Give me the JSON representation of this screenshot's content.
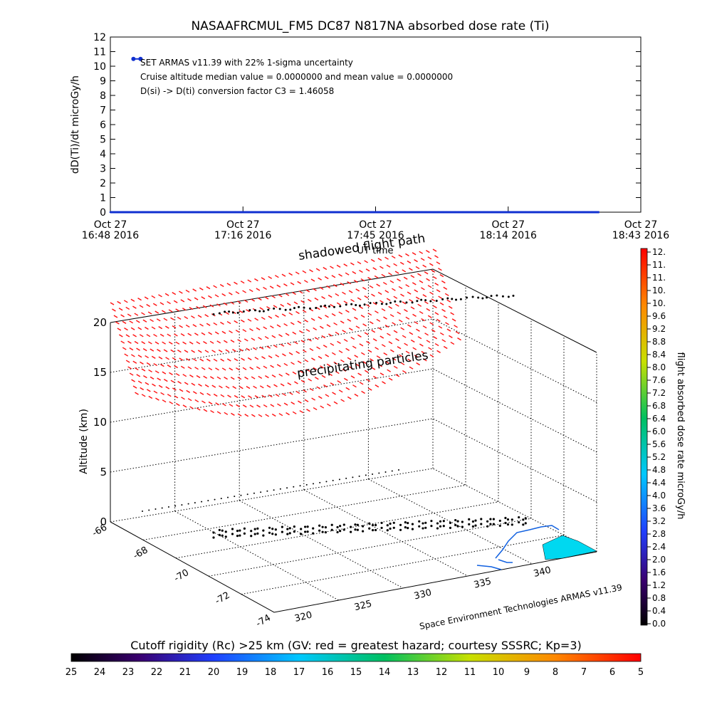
{
  "chart_data": [
    {
      "type": "line",
      "title": "NASAAFRCMUL_FM5 DC87 N817NA absorbed dose rate (Ti)",
      "xlabel": "UT time",
      "ylabel": "dD(Ti)/dt microGy/h",
      "ylim": [
        0,
        12
      ],
      "yticks": [
        "0",
        "1",
        "2",
        "3",
        "4",
        "5",
        "6",
        "7",
        "8",
        "9",
        "10",
        "11",
        "12"
      ],
      "xticks": [
        {
          "line1": "Oct 27",
          "line2": "16:48 2016"
        },
        {
          "line1": "Oct 27",
          "line2": "17:16 2016"
        },
        {
          "line1": "Oct 27",
          "line2": "17:45 2016"
        },
        {
          "line1": "Oct 27",
          "line2": "18:14 2016"
        },
        {
          "line1": "Oct 27",
          "line2": "18:43 2016"
        }
      ],
      "annotations": [
        "SET ARMAS v11.39 with 22% 1-sigma uncertainty",
        "Cruise altitude median value = 0.0000000 and mean value = 0.0000000",
        "D(si) -> D(ti) conversion factor C3 = 1.46058"
      ],
      "series": [
        {
          "color": "#1030d0",
          "spike": {
            "x_min": [
              5,
              7
            ],
            "y": 10.5
          },
          "baseline": {
            "x_min_range": [
              0,
              106
            ],
            "y": 0.0
          }
        }
      ],
      "x_range_min": [
        0,
        115
      ]
    },
    {
      "type": "scatter",
      "title": "shadowed flight path",
      "annotation": "precipitating particles",
      "zlabel": "Altitude (km)",
      "zticks": [
        "0",
        "5",
        "10",
        "15",
        "20"
      ],
      "longitude_ticks": [
        "320",
        "325",
        "330",
        "335",
        "340"
      ],
      "latitude_ticks": [
        "-66",
        "-68",
        "-70",
        "-72",
        "-74"
      ],
      "credit": "Space Environment Technologies ARMAS v11.39",
      "colorbar": {
        "label": "flight absorbed dose rate microGy/h",
        "ticks": [
          "12.",
          "11.",
          "11.",
          "10.",
          "10.",
          "9.6",
          "9.2",
          "8.8",
          "8.4",
          "8.0",
          "7.6",
          "7.2",
          "6.8",
          "6.4",
          "6.0",
          "5.6",
          "5.2",
          "4.8",
          "4.4",
          "4.0",
          "3.6",
          "3.2",
          "2.8",
          "2.4",
          "2.0",
          "1.6",
          "1.2",
          "0.8",
          "0.4",
          "0.0"
        ]
      },
      "flight_path": {
        "color": "#000000",
        "altitude_km": [
          0.5,
          1.0,
          11.0
        ]
      },
      "particles": {
        "color": "#ff1010",
        "altitude_km_range": [
          11,
          22
        ]
      }
    },
    {
      "type": "heatmap",
      "title": "Cutoff rigidity (Rc) >25 km (GV: red = greatest hazard; courtesy SSSRC; Kp=3)",
      "ticks": [
        "25",
        "24",
        "23",
        "22",
        "21",
        "20",
        "19",
        "18",
        "17",
        "16",
        "15",
        "14",
        "13",
        "12",
        "11",
        "10",
        "9",
        "8",
        "7",
        "6",
        "5"
      ]
    }
  ]
}
